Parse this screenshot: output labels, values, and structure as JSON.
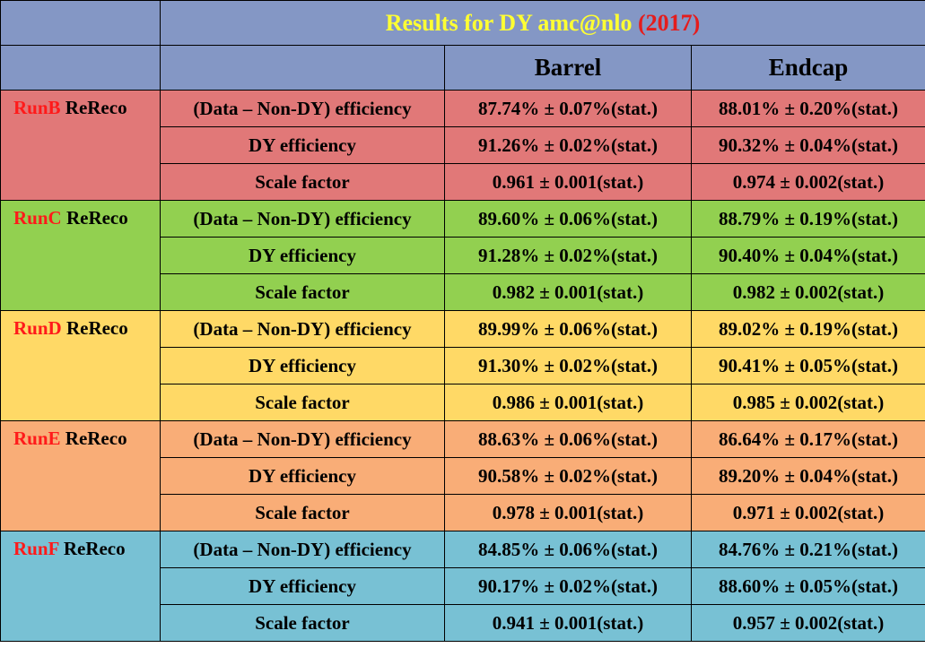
{
  "title": {
    "prefix": "Results  for DY amc@nlo ",
    "year": "(2017)",
    "prefix_color": "#ffff33",
    "year_color": "#e51c1c"
  },
  "columns": {
    "barrel": "Barrel",
    "endcap": "Endcap"
  },
  "header_color": "#8497c5",
  "run_label_suffix": " ReReco",
  "row_labels": {
    "eff_data": "(Data – Non-DY) efficiency",
    "eff_dy": "DY efficiency",
    "scale_factor": "Scale factor"
  },
  "runs": [
    {
      "name": "RunB",
      "color": "#e17878",
      "eff_data": {
        "barrel": "87.74% ± 0.07%(stat.)",
        "endcap": "88.01% ± 0.20%(stat.)"
      },
      "eff_dy": {
        "barrel": "91.26% ± 0.02%(stat.)",
        "endcap": "90.32% ± 0.04%(stat.)"
      },
      "scale_factor": {
        "barrel": "0.961 ± 0.001(stat.)",
        "endcap": "0.974 ± 0.002(stat.)"
      }
    },
    {
      "name": "RunC",
      "color": "#92d050",
      "eff_data": {
        "barrel": "89.60% ± 0.06%(stat.)",
        "endcap": "88.79% ± 0.19%(stat.)"
      },
      "eff_dy": {
        "barrel": "91.28% ± 0.02%(stat.)",
        "endcap": "90.40% ± 0.04%(stat.)"
      },
      "scale_factor": {
        "barrel": "0.982 ± 0.001(stat.)",
        "endcap": "0.982 ± 0.002(stat.)"
      }
    },
    {
      "name": "RunD",
      "color": "#ffd966",
      "eff_data": {
        "barrel": "89.99% ± 0.06%(stat.)",
        "endcap": "89.02% ± 0.19%(stat.)"
      },
      "eff_dy": {
        "barrel": "91.30% ± 0.02%(stat.)",
        "endcap": "90.41% ± 0.05%(stat.)"
      },
      "scale_factor": {
        "barrel": "0.986 ± 0.001(stat.)",
        "endcap": "0.985 ± 0.002(stat.)"
      }
    },
    {
      "name": "RunE",
      "color": "#f9ad77",
      "eff_data": {
        "barrel": "88.63% ± 0.06%(stat.)",
        "endcap": "86.64% ± 0.17%(stat.)"
      },
      "eff_dy": {
        "barrel": "90.58% ± 0.02%(stat.)",
        "endcap": "89.20% ± 0.04%(stat.)"
      },
      "scale_factor": {
        "barrel": "0.978 ± 0.001(stat.)",
        "endcap": "0.971 ± 0.002(stat.)"
      }
    },
    {
      "name": "RunF",
      "color": "#78c1d4",
      "eff_data": {
        "barrel": "84.85% ± 0.06%(stat.)",
        "endcap": "84.76% ± 0.21%(stat.)"
      },
      "eff_dy": {
        "barrel": "90.17% ± 0.02%(stat.)",
        "endcap": "88.60% ± 0.05%(stat.)"
      },
      "scale_factor": {
        "barrel": "0.941 ± 0.001(stat.)",
        "endcap": "0.957 ± 0.002(stat.)"
      }
    }
  ]
}
